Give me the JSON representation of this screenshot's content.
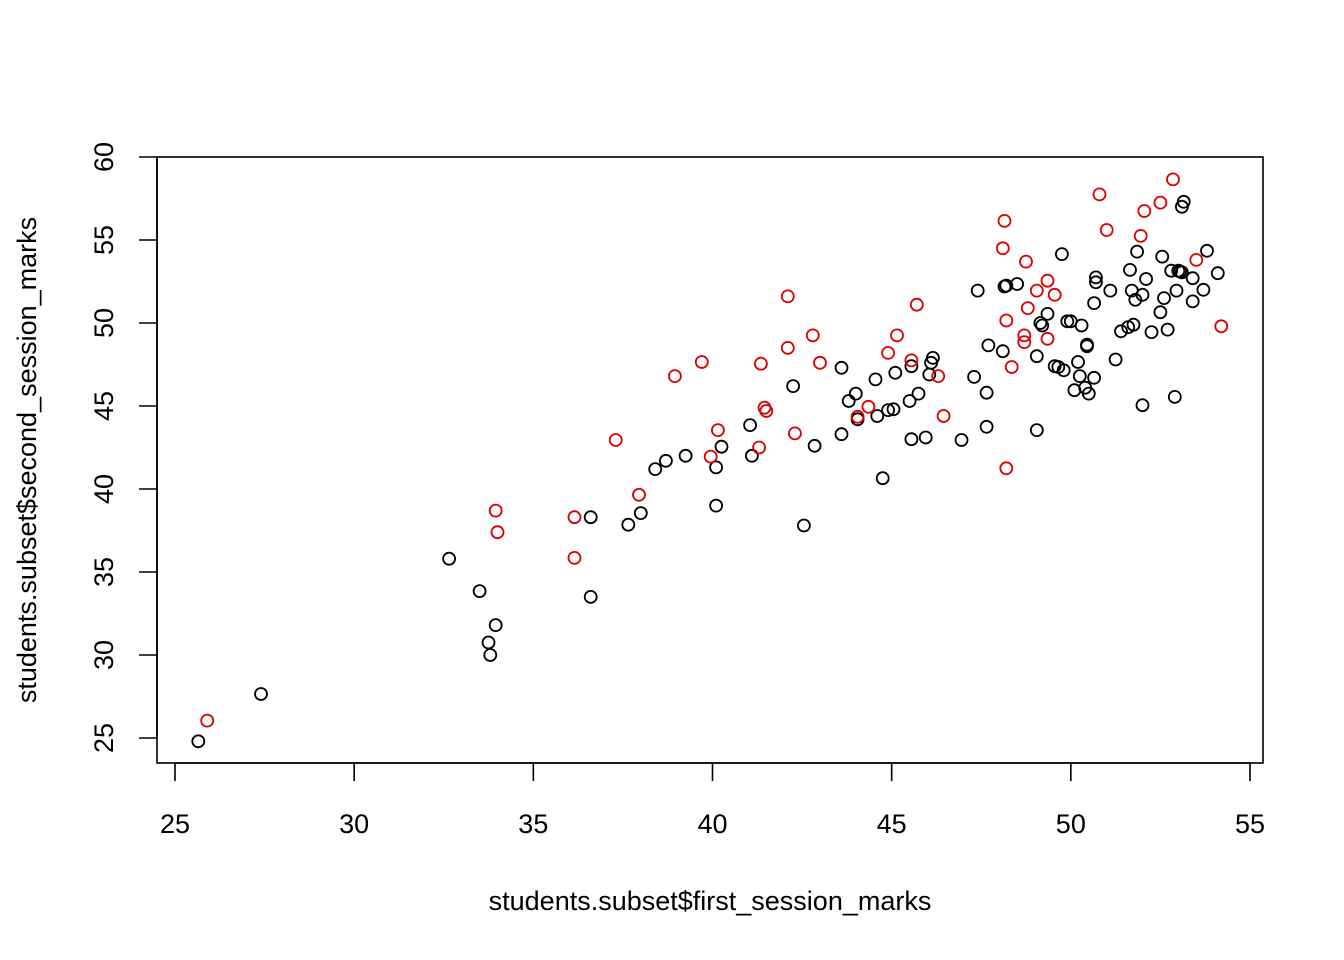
{
  "chart_data": {
    "type": "scatter",
    "title": "",
    "xlabel": "students.subset$first_session_marks",
    "ylabel": "students.subset$second_session_marks",
    "xlim": [
      24.5,
      55.3
    ],
    "ylim": [
      23.5,
      60
    ],
    "xticks": [
      25,
      30,
      35,
      40,
      45,
      50,
      55
    ],
    "yticks": [
      25,
      30,
      35,
      40,
      45,
      50,
      55,
      60
    ],
    "grid": false,
    "legend": "none",
    "marker": "open-circle",
    "series": [
      {
        "color": "#000000",
        "points": [
          [
            25.65,
            24.8
          ],
          [
            27.4,
            27.65
          ],
          [
            32.65,
            35.8
          ],
          [
            33.5,
            33.85
          ],
          [
            33.75,
            30.75
          ],
          [
            33.8,
            30.0
          ],
          [
            33.95,
            31.8
          ],
          [
            36.6,
            38.3
          ],
          [
            36.6,
            33.5
          ],
          [
            37.65,
            37.85
          ],
          [
            38.0,
            38.55
          ],
          [
            38.4,
            41.2
          ],
          [
            38.7,
            41.7
          ],
          [
            39.25,
            42.0
          ],
          [
            40.1,
            39.0
          ],
          [
            40.1,
            41.3
          ],
          [
            40.25,
            42.55
          ],
          [
            41.05,
            43.85
          ],
          [
            41.1,
            42.0
          ],
          [
            42.25,
            46.2
          ],
          [
            42.55,
            37.8
          ],
          [
            42.85,
            42.6
          ],
          [
            43.6,
            43.3
          ],
          [
            43.6,
            47.3
          ],
          [
            43.8,
            45.3
          ],
          [
            44.0,
            45.75
          ],
          [
            44.05,
            44.2
          ],
          [
            44.55,
            46.6
          ],
          [
            44.6,
            44.4
          ],
          [
            44.75,
            40.65
          ],
          [
            44.9,
            44.75
          ],
          [
            45.05,
            44.8
          ],
          [
            45.1,
            47.0
          ],
          [
            45.5,
            45.3
          ],
          [
            45.55,
            47.4
          ],
          [
            45.55,
            43.0
          ],
          [
            45.75,
            45.75
          ],
          [
            45.95,
            43.1
          ],
          [
            46.05,
            46.9
          ],
          [
            46.1,
            47.6
          ],
          [
            46.15,
            47.9
          ],
          [
            46.95,
            42.95
          ],
          [
            47.3,
            46.75
          ],
          [
            47.4,
            51.95
          ],
          [
            47.65,
            43.75
          ],
          [
            47.65,
            45.8
          ],
          [
            47.7,
            48.65
          ],
          [
            48.1,
            48.3
          ],
          [
            48.15,
            52.2
          ],
          [
            48.2,
            52.25
          ],
          [
            48.5,
            52.35
          ],
          [
            49.05,
            48.0
          ],
          [
            49.05,
            43.55
          ],
          [
            49.15,
            50.0
          ],
          [
            49.2,
            49.85
          ],
          [
            49.35,
            50.55
          ],
          [
            49.55,
            47.4
          ],
          [
            49.65,
            47.35
          ],
          [
            49.75,
            54.15
          ],
          [
            49.8,
            47.15
          ],
          [
            49.9,
            50.1
          ],
          [
            50.0,
            50.1
          ],
          [
            50.1,
            45.95
          ],
          [
            50.2,
            47.65
          ],
          [
            50.25,
            46.8
          ],
          [
            50.3,
            49.85
          ],
          [
            50.4,
            46.1
          ],
          [
            50.45,
            48.7
          ],
          [
            50.45,
            48.6
          ],
          [
            50.5,
            45.75
          ],
          [
            50.65,
            46.7
          ],
          [
            50.65,
            51.2
          ],
          [
            50.7,
            52.45
          ],
          [
            50.7,
            52.75
          ],
          [
            51.1,
            51.95
          ],
          [
            51.25,
            47.8
          ],
          [
            51.4,
            49.5
          ],
          [
            51.6,
            49.75
          ],
          [
            51.65,
            53.2
          ],
          [
            51.7,
            51.95
          ],
          [
            51.75,
            49.9
          ],
          [
            51.8,
            51.4
          ],
          [
            51.85,
            54.3
          ],
          [
            52.0,
            51.7
          ],
          [
            52.0,
            45.05
          ],
          [
            52.1,
            52.65
          ],
          [
            52.25,
            49.45
          ],
          [
            52.5,
            50.65
          ],
          [
            52.55,
            54.0
          ],
          [
            52.6,
            51.5
          ],
          [
            52.7,
            49.6
          ],
          [
            52.8,
            53.15
          ],
          [
            52.9,
            45.55
          ],
          [
            52.95,
            51.95
          ],
          [
            53.0,
            53.15
          ],
          [
            53.05,
            53.1
          ],
          [
            53.1,
            53.05
          ],
          [
            53.1,
            57.0
          ],
          [
            53.15,
            57.3
          ],
          [
            53.4,
            51.3
          ],
          [
            53.4,
            52.7
          ],
          [
            53.7,
            52.0
          ],
          [
            53.8,
            54.35
          ],
          [
            54.1,
            53.0
          ]
        ]
      },
      {
        "color": "#dd0000",
        "points": [
          [
            25.9,
            26.05
          ],
          [
            33.95,
            38.7
          ],
          [
            34.0,
            37.4
          ],
          [
            36.15,
            38.3
          ],
          [
            36.15,
            35.85
          ],
          [
            37.3,
            42.95
          ],
          [
            37.95,
            39.65
          ],
          [
            38.95,
            46.8
          ],
          [
            39.7,
            47.65
          ],
          [
            39.95,
            41.95
          ],
          [
            40.15,
            43.55
          ],
          [
            41.3,
            42.5
          ],
          [
            41.35,
            47.55
          ],
          [
            41.45,
            44.9
          ],
          [
            41.5,
            44.7
          ],
          [
            42.1,
            51.6
          ],
          [
            42.1,
            48.5
          ],
          [
            42.3,
            43.35
          ],
          [
            42.8,
            49.25
          ],
          [
            43.0,
            47.6
          ],
          [
            44.05,
            44.35
          ],
          [
            44.35,
            44.95
          ],
          [
            44.9,
            48.2
          ],
          [
            45.15,
            49.25
          ],
          [
            45.55,
            47.75
          ],
          [
            45.7,
            51.1
          ],
          [
            46.3,
            46.8
          ],
          [
            46.45,
            44.4
          ],
          [
            48.1,
            54.5
          ],
          [
            48.15,
            56.15
          ],
          [
            48.2,
            50.15
          ],
          [
            48.2,
            41.25
          ],
          [
            48.35,
            47.35
          ],
          [
            48.7,
            48.85
          ],
          [
            48.7,
            49.25
          ],
          [
            48.75,
            53.7
          ],
          [
            48.8,
            50.9
          ],
          [
            49.05,
            51.95
          ],
          [
            49.35,
            49.05
          ],
          [
            49.35,
            52.55
          ],
          [
            49.55,
            51.7
          ],
          [
            50.8,
            57.75
          ],
          [
            51.0,
            55.6
          ],
          [
            51.95,
            55.25
          ],
          [
            52.05,
            56.75
          ],
          [
            52.5,
            57.25
          ],
          [
            52.85,
            58.65
          ],
          [
            53.5,
            53.8
          ],
          [
            54.2,
            49.8
          ]
        ]
      }
    ]
  }
}
